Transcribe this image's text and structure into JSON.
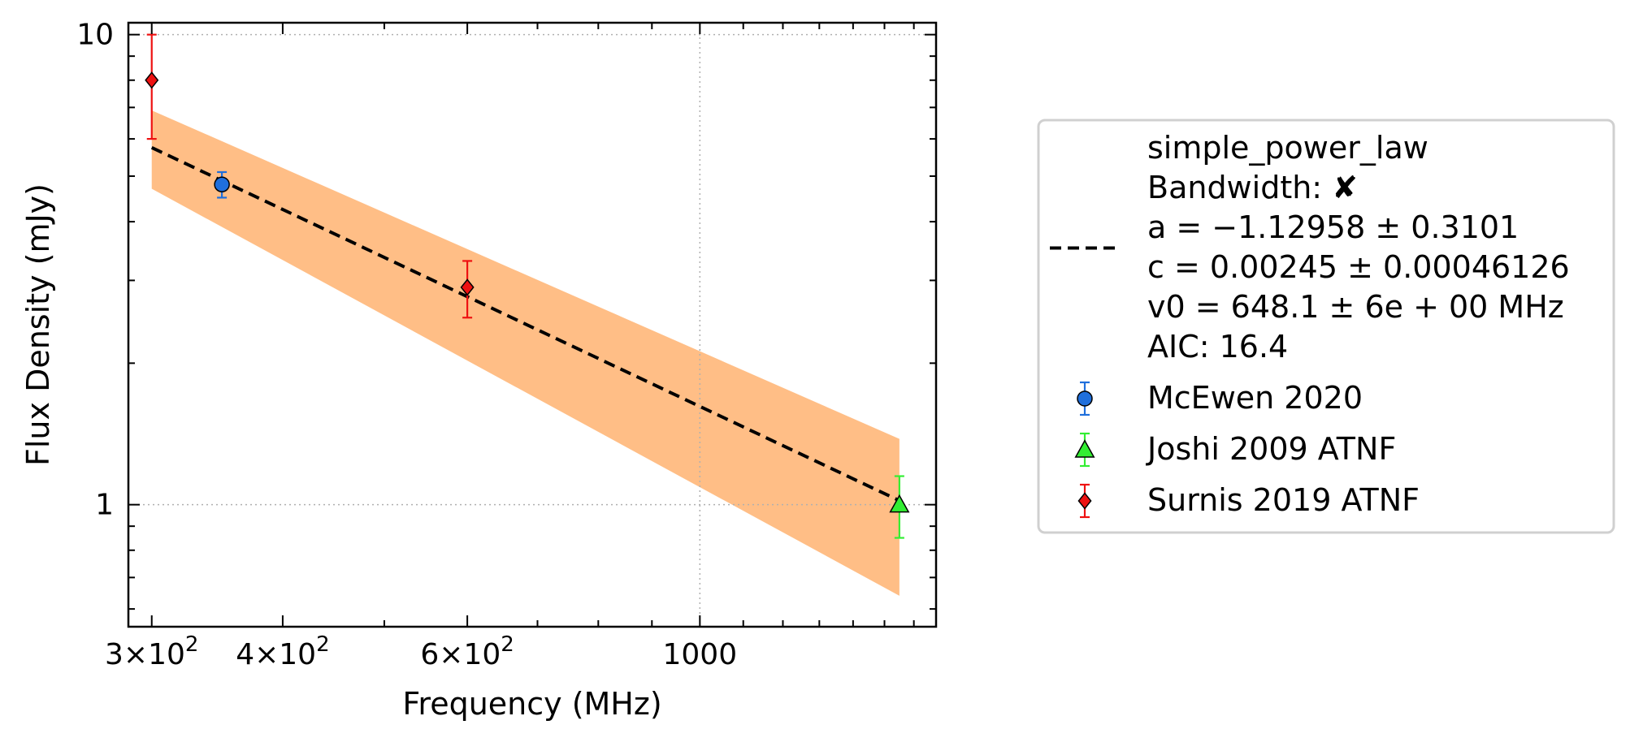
{
  "chart_data": {
    "type": "scatter",
    "title": "",
    "xlabel": "Frequency (MHz)",
    "ylabel": "Flux Density (mJy)",
    "xscale": "log",
    "yscale": "log",
    "xlim": [
      285,
      1680
    ],
    "ylim": [
      0.55,
      10.6
    ],
    "grid": true,
    "legend_position": "outside right",
    "x_ticks": [
      {
        "value": 300,
        "base": "3×10",
        "exp": "2",
        "text": ""
      },
      {
        "value": 400,
        "base": "4×10",
        "exp": "2",
        "text": ""
      },
      {
        "value": 600,
        "base": "6×10",
        "exp": "2",
        "text": ""
      },
      {
        "value": 1000,
        "base": "",
        "exp": "",
        "text": "1000"
      }
    ],
    "y_ticks": [
      {
        "value": 1,
        "text": "1"
      },
      {
        "value": 10,
        "text": "10"
      }
    ],
    "fit": {
      "name": "simple_power_law",
      "legend_lines": [
        "simple_power_law",
        "Bandwidth: ✘",
        "a = −1.12958 ± 0.3101",
        "c = 0.00245 ± 0.00046126",
        "v0 = 648.1 ± 6e + 00 MHz",
        "AIC: 16.4"
      ],
      "line_color": "#000000",
      "band_color": "#ffbe86",
      "x": [
        300,
        1550
      ],
      "y": [
        5.75,
        1.02
      ],
      "band_upper": [
        6.9,
        1.38
      ],
      "band_lower": [
        4.7,
        0.64
      ]
    },
    "series": [
      {
        "name": "McEwen 2020",
        "marker": "circle",
        "color": "#1f6fdc",
        "errcolor": "#1f6fdc",
        "points": [
          {
            "x": 350,
            "y": 4.8,
            "yerr_low": 0.3,
            "yerr_high": 0.3
          }
        ]
      },
      {
        "name": "Joshi 2009 ATNF",
        "marker": "triangle",
        "color": "#33ee33",
        "errcolor": "#33ee33",
        "points": [
          {
            "x": 1550,
            "y": 1.0,
            "yerr_low": 0.15,
            "yerr_high": 0.15
          }
        ]
      },
      {
        "name": "Surnis 2019 ATNF",
        "marker": "diamond",
        "color": "#ee1111",
        "errcolor": "#ee1111",
        "points": [
          {
            "x": 300,
            "y": 8.0,
            "yerr_low": 2.0,
            "yerr_high": 2.0
          },
          {
            "x": 600,
            "y": 2.9,
            "yerr_low": 0.4,
            "yerr_high": 0.4
          }
        ]
      }
    ]
  }
}
